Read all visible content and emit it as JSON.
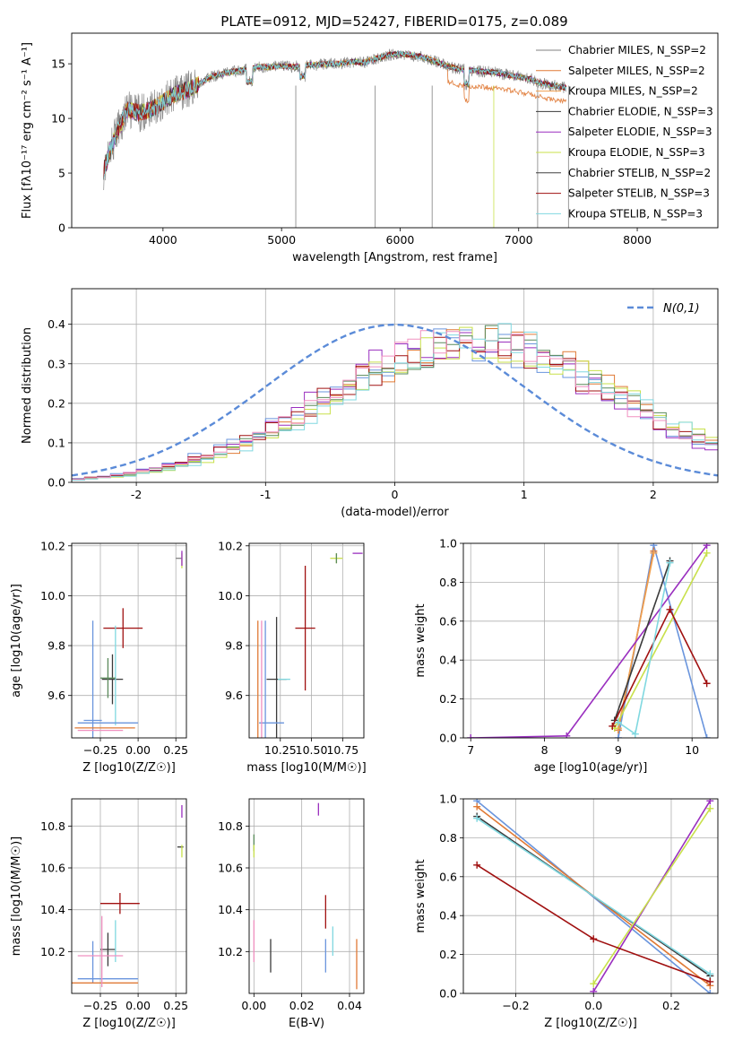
{
  "figure": {
    "title": "PLATE=0912, MJD=52427, FIBERID=0175, z=0.089"
  },
  "chart_data": [
    {
      "id": "spectrum",
      "type": "line",
      "xlabel": "wavelength [Angstrom, rest frame]",
      "ylabel": "Flux [fλ10⁻¹⁷ erg cm⁻² s⁻¹ A⁻¹]",
      "xlim": [
        3230,
        8680
      ],
      "ylim": [
        0,
        17.8
      ],
      "xticks": [
        4000,
        5000,
        6000,
        7000,
        8000
      ],
      "yticks": [
        0,
        5,
        10,
        15
      ],
      "grid": false,
      "legend_position": "right",
      "spectrum_knots": {
        "x": [
          3500,
          3600,
          3700,
          3800,
          3900,
          4000,
          4100,
          4200,
          4300,
          4400,
          4500,
          4600,
          4700,
          4800,
          4900,
          5000,
          5100,
          5200,
          5300,
          5400,
          5500,
          5600,
          5700,
          5800,
          5900,
          6000,
          6100,
          6200,
          6300,
          6400,
          6500,
          6600,
          6700,
          6800,
          6900,
          7000,
          7100,
          7200,
          7300,
          7400
        ],
        "y": [
          5.2,
          8.5,
          10.8,
          10.5,
          10.8,
          11.5,
          12.2,
          12.6,
          13.1,
          13.8,
          14.1,
          14.3,
          14.5,
          14.7,
          14.7,
          14.8,
          14.7,
          14.9,
          14.9,
          15.0,
          15.0,
          15.2,
          15.1,
          15.5,
          15.8,
          15.9,
          15.8,
          15.6,
          15.2,
          14.8,
          14.5,
          14.4,
          14.3,
          14.2,
          14.0,
          13.8,
          13.6,
          13.2,
          13.0,
          12.8
        ]
      },
      "series": [
        {
          "name": "Chabrier MILES, N_SSP=2",
          "color": "#808080"
        },
        {
          "name": "Salpeter MILES, N_SSP=2",
          "color": "#e07a36"
        },
        {
          "name": "Kroupa MILES, N_SSP=2",
          "color": "#f0a050"
        },
        {
          "name": "Chabrier ELODIE, N_SSP=3",
          "color": "#3a3a3a"
        },
        {
          "name": "Salpeter ELODIE, N_SSP=3",
          "color": "#9a2fbf"
        },
        {
          "name": "Kroupa ELODIE, N_SSP=3",
          "color": "#c8e04a"
        },
        {
          "name": "Chabrier STELIB, N_SSP=2",
          "color": "#404040"
        },
        {
          "name": "Salpeter STELIB, N_SSP=3",
          "color": "#a01010"
        },
        {
          "name": "Kroupa STELIB, N_SSP=3",
          "color": "#80d8e0"
        }
      ]
    },
    {
      "id": "residuals",
      "type": "step",
      "xlabel": "(data-model)/error",
      "ylabel": "Normed distribution",
      "xlim": [
        -2.5,
        2.5
      ],
      "ylim": [
        0,
        0.49
      ],
      "xticks": [
        -2,
        -1,
        0,
        1,
        2
      ],
      "yticks": [
        0.0,
        0.1,
        0.2,
        0.3,
        0.4
      ],
      "grid": true,
      "legend": {
        "label": "N(0,1)",
        "position": "top-right"
      },
      "gaussian": {
        "mean": 0,
        "sigma": 1,
        "color": "#5b8bd8"
      },
      "bin_width": 0.1,
      "bin_start": -2.5,
      "histograms": [
        {
          "color": "#6a95dd",
          "shift": 0.55,
          "scale": 1.14,
          "jitter": 11
        },
        {
          "color": "#e07a36",
          "shift": 0.65,
          "scale": 1.12,
          "jitter": 23
        },
        {
          "color": "#9a2fbf",
          "shift": 0.55,
          "scale": 1.11,
          "jitter": 37
        },
        {
          "color": "#c8e04a",
          "shift": 0.7,
          "scale": 1.12,
          "jitter": 41
        },
        {
          "color": "#a01010",
          "shift": 0.6,
          "scale": 1.13,
          "jitter": 53
        },
        {
          "color": "#5a8a5a",
          "shift": 0.65,
          "scale": 1.14,
          "jitter": 67
        },
        {
          "color": "#80d8e0",
          "shift": 0.7,
          "scale": 1.11,
          "jitter": 79
        },
        {
          "color": "#f090c0",
          "shift": 0.6,
          "scale": 1.12,
          "jitter": 83
        }
      ]
    },
    {
      "id": "age_vs_z",
      "type": "errorbar",
      "xlabel": "Z [log10(Z/Z☉)]",
      "ylabel": "age  [log10(age/yr)]",
      "xlim": [
        -0.44,
        0.32
      ],
      "ylim": [
        9.43,
        10.21
      ],
      "xticks": [
        -0.25,
        0.0,
        0.25
      ],
      "xticklabels": [
        "−0.25",
        "0.00",
        "0.25"
      ],
      "yticks": [
        9.6,
        9.8,
        10.0,
        10.2
      ],
      "yticklabels": [
        "9.6",
        "9.8",
        "10.0",
        "10.2"
      ],
      "points": [
        {
          "x": -0.17,
          "y": 9.665,
          "xerr": 0.07,
          "yerr": 0.1,
          "color": "#3a3a3a"
        },
        {
          "x": -0.1,
          "y": 9.87,
          "xerr": 0.13,
          "yerr": 0.08,
          "color": "#a01010"
        },
        {
          "x": -0.15,
          "y": 9.68,
          "xerr": 0.0,
          "yerr": 0.2,
          "color": "#80d8e0"
        },
        {
          "x": -0.2,
          "y": 9.67,
          "xerr": 0.05,
          "yerr": 0.08,
          "color": "#5a8a5a"
        },
        {
          "x": -0.3,
          "y": 9.5,
          "xerr": 0.06,
          "yerr": 0.4,
          "color": "#6a95dd"
        },
        {
          "x": -0.2,
          "y": 9.49,
          "xerr": 0.2,
          "yerr": 0.0,
          "color": "#6a95dd"
        },
        {
          "x": -0.22,
          "y": 9.47,
          "xerr": 0.2,
          "yerr": 0.0,
          "color": "#e07a36"
        },
        {
          "x": -0.25,
          "y": 9.46,
          "xerr": 0.15,
          "yerr": 0.0,
          "color": "#f090c0"
        },
        {
          "x": 0.27,
          "y": 10.15,
          "xerr": 0.02,
          "yerr": 0.0,
          "color": "#808080"
        },
        {
          "x": 0.29,
          "y": 10.14,
          "xerr": 0.0,
          "yerr": 0.03,
          "color": "#c8e04a"
        },
        {
          "x": 0.29,
          "y": 10.15,
          "xerr": 0.0,
          "yerr": 0.03,
          "color": "#9a2fbf"
        }
      ]
    },
    {
      "id": "age_vs_mass",
      "type": "errorbar",
      "xlabel": "mass [log10(M/M☉)]",
      "xlim": [
        10.0,
        10.92
      ],
      "ylim": [
        9.43,
        10.21
      ],
      "xticks": [
        10.25,
        10.5,
        10.75
      ],
      "xticklabels": [
        "10.25",
        "10.50",
        "10.75"
      ],
      "yticks": [
        9.6,
        9.8,
        10.0,
        10.2
      ],
      "yticklabels": [
        "9.6",
        "9.8",
        "10.0",
        "10.2"
      ],
      "points": [
        {
          "x": 10.45,
          "y": 9.87,
          "xerr": 0.08,
          "yerr": 0.25,
          "color": "#a01010"
        },
        {
          "x": 10.22,
          "y": 9.665,
          "xerr": 0.08,
          "yerr": 0.25,
          "color": "#3a3a3a"
        },
        {
          "x": 10.28,
          "y": 9.665,
          "xerr": 0.05,
          "yerr": 0.0,
          "color": "#80d8e0"
        },
        {
          "x": 10.13,
          "y": 9.5,
          "xerr": 0.0,
          "yerr": 0.4,
          "color": "#6a95dd"
        },
        {
          "x": 10.18,
          "y": 9.49,
          "xerr": 0.1,
          "yerr": 0.0,
          "color": "#6a95dd"
        },
        {
          "x": 10.07,
          "y": 9.5,
          "xerr": 0.0,
          "yerr": 0.4,
          "color": "#e07a36"
        },
        {
          "x": 10.1,
          "y": 9.5,
          "xerr": 0.0,
          "yerr": 0.4,
          "color": "#f090c0"
        },
        {
          "x": 10.7,
          "y": 10.15,
          "xerr": 0.05,
          "yerr": 0.02,
          "color": "#c8e04a"
        },
        {
          "x": 10.7,
          "y": 10.15,
          "xerr": 0.0,
          "yerr": 0.02,
          "color": "#5a8a5a"
        },
        {
          "x": 10.87,
          "y": 10.17,
          "xerr": 0.04,
          "yerr": 0.0,
          "color": "#9a2fbf"
        }
      ]
    },
    {
      "id": "mass_vs_z",
      "type": "errorbar",
      "xlabel": "Z [log10(Z/Z☉)]",
      "ylabel": "mass [log10(M/M☉)]",
      "xlim": [
        -0.44,
        0.32
      ],
      "ylim": [
        10.0,
        10.93
      ],
      "xticks": [
        -0.25,
        0.0,
        0.25
      ],
      "xticklabels": [
        "−0.25",
        "0.00",
        "0.25"
      ],
      "yticks": [
        10.2,
        10.4,
        10.6,
        10.8
      ],
      "yticklabels": [
        "10.2",
        "10.4",
        "10.6",
        "10.8"
      ],
      "points": [
        {
          "x": -0.12,
          "y": 10.43,
          "xerr": 0.13,
          "yerr": 0.05,
          "color": "#a01010"
        },
        {
          "x": -0.2,
          "y": 10.21,
          "xerr": 0.05,
          "yerr": 0.08,
          "color": "#3a3a3a"
        },
        {
          "x": -0.15,
          "y": 10.25,
          "xerr": 0.0,
          "yerr": 0.1,
          "color": "#80d8e0"
        },
        {
          "x": -0.3,
          "y": 10.15,
          "xerr": 0.0,
          "yerr": 0.1,
          "color": "#6a95dd"
        },
        {
          "x": -0.2,
          "y": 10.07,
          "xerr": 0.2,
          "yerr": 0.0,
          "color": "#6a95dd"
        },
        {
          "x": -0.22,
          "y": 10.05,
          "xerr": 0.22,
          "yerr": 0.0,
          "color": "#e07a36"
        },
        {
          "x": -0.25,
          "y": 10.18,
          "xerr": 0.15,
          "yerr": 0.0,
          "color": "#f090c0"
        },
        {
          "x": -0.24,
          "y": 10.2,
          "xerr": 0.0,
          "yerr": 0.17,
          "color": "#f090c0"
        },
        {
          "x": 0.28,
          "y": 10.7,
          "xerr": 0.02,
          "yerr": 0.0,
          "color": "#3a3a3a"
        },
        {
          "x": 0.29,
          "y": 10.68,
          "xerr": 0.0,
          "yerr": 0.03,
          "color": "#c8e04a"
        },
        {
          "x": 0.29,
          "y": 10.87,
          "xerr": 0.0,
          "yerr": 0.03,
          "color": "#9a2fbf"
        }
      ]
    },
    {
      "id": "mass_vs_ebv",
      "type": "errorbar",
      "xlabel": "E(B-V)",
      "xlim": [
        -0.002,
        0.046
      ],
      "ylim": [
        10.0,
        10.93
      ],
      "xticks": [
        0.0,
        0.02,
        0.04
      ],
      "xticklabels": [
        "0.00",
        "0.02",
        "0.04"
      ],
      "yticks": [
        10.2,
        10.4,
        10.6,
        10.8
      ],
      "yticklabels": [
        "10.2",
        "10.4",
        "10.6",
        "10.8"
      ],
      "points": [
        {
          "x": 0.0,
          "y": 10.72,
          "xerr": 0.0,
          "yerr": 0.04,
          "color": "#5a8a5a"
        },
        {
          "x": 0.0,
          "y": 10.68,
          "xerr": 0.0,
          "yerr": 0.03,
          "color": "#c8e04a"
        },
        {
          "x": 0.0,
          "y": 10.25,
          "xerr": 0.0,
          "yerr": 0.1,
          "color": "#f090c0"
        },
        {
          "x": 0.007,
          "y": 10.18,
          "xerr": 0.0,
          "yerr": 0.08,
          "color": "#3a3a3a"
        },
        {
          "x": 0.027,
          "y": 10.88,
          "xerr": 0.0,
          "yerr": 0.03,
          "color": "#9a2fbf"
        },
        {
          "x": 0.03,
          "y": 10.39,
          "xerr": 0.0,
          "yerr": 0.08,
          "color": "#a01010"
        },
        {
          "x": 0.03,
          "y": 10.18,
          "xerr": 0.0,
          "yerr": 0.08,
          "color": "#6a95dd"
        },
        {
          "x": 0.033,
          "y": 10.25,
          "xerr": 0.0,
          "yerr": 0.07,
          "color": "#80d8e0"
        },
        {
          "x": 0.043,
          "y": 10.14,
          "xerr": 0.0,
          "yerr": 0.12,
          "color": "#e07a36"
        }
      ]
    },
    {
      "id": "weight_vs_age",
      "type": "line",
      "xlabel": "age  [log10(age/yr)]",
      "ylabel": "mass weight",
      "xlim": [
        6.9,
        10.35
      ],
      "ylim": [
        0,
        1
      ],
      "xticks": [
        7,
        8,
        9,
        10
      ],
      "xticklabels": [
        "7",
        "8",
        "9",
        "10"
      ],
      "yticks": [
        0,
        0.2,
        0.4,
        0.6,
        0.8,
        1.0
      ],
      "yticklabels": [
        "0.0",
        "0.2",
        "0.4",
        "0.6",
        "0.8",
        "1.0"
      ],
      "grid": true,
      "series": [
        {
          "color": "#6a95dd",
          "x": [
            9.0,
            9.48,
            10.2
          ],
          "y": [
            0.0,
            0.99,
            0.0
          ]
        },
        {
          "color": "#e07a36",
          "x": [
            9.0,
            9.48
          ],
          "y": [
            0.04,
            0.96
          ]
        },
        {
          "color": "#f0a050",
          "x": [
            9.0,
            9.48
          ],
          "y": [
            0.05,
            0.95
          ]
        },
        {
          "color": "#9a2fbf",
          "x": [
            7.0,
            8.3,
            10.2
          ],
          "y": [
            0.0,
            0.01,
            0.99
          ]
        },
        {
          "color": "#c8e04a",
          "x": [
            8.95,
            10.2
          ],
          "y": [
            0.05,
            0.95
          ]
        },
        {
          "color": "#3a3a3a",
          "x": [
            8.95,
            9.7
          ],
          "y": [
            0.09,
            0.91
          ]
        },
        {
          "color": "#a01010",
          "x": [
            8.92,
            9.7,
            10.2
          ],
          "y": [
            0.06,
            0.66,
            0.28
          ]
        },
        {
          "color": "#80d8e0",
          "x": [
            9.0,
            9.23,
            9.7
          ],
          "y": [
            0.08,
            0.02,
            0.9
          ]
        }
      ]
    },
    {
      "id": "weight_vs_z",
      "type": "line",
      "xlabel": "Z [log10(Z/Z☉)]",
      "ylabel": "mass weight",
      "xlim": [
        -0.335,
        0.32
      ],
      "ylim": [
        0,
        1
      ],
      "xticks": [
        -0.2,
        0.0,
        0.2
      ],
      "xticklabels": [
        "−0.2",
        "0.0",
        "0.2"
      ],
      "yticks": [
        0,
        0.2,
        0.4,
        0.6,
        0.8,
        1.0
      ],
      "yticklabels": [
        "0.0",
        "0.2",
        "0.4",
        "0.6",
        "0.8",
        "1.0"
      ],
      "grid": true,
      "series": [
        {
          "color": "#6a95dd",
          "x": [
            -0.3,
            0.3
          ],
          "y": [
            0.99,
            0.0
          ]
        },
        {
          "color": "#e07a36",
          "x": [
            -0.3,
            0.3
          ],
          "y": [
            0.96,
            0.04
          ]
        },
        {
          "color": "#3a3a3a",
          "x": [
            -0.3,
            0.3
          ],
          "y": [
            0.91,
            0.09
          ]
        },
        {
          "color": "#80d8e0",
          "x": [
            -0.3,
            0.3
          ],
          "y": [
            0.9,
            0.1
          ]
        },
        {
          "color": "#9a2fbf",
          "x": [
            0.0,
            0.3
          ],
          "y": [
            0.01,
            0.99
          ]
        },
        {
          "color": "#c8e04a",
          "x": [
            0.0,
            0.3
          ],
          "y": [
            0.05,
            0.95
          ]
        },
        {
          "color": "#a01010",
          "x": [
            -0.3,
            0.0,
            0.3
          ],
          "y": [
            0.66,
            0.28,
            0.06
          ]
        }
      ]
    }
  ]
}
